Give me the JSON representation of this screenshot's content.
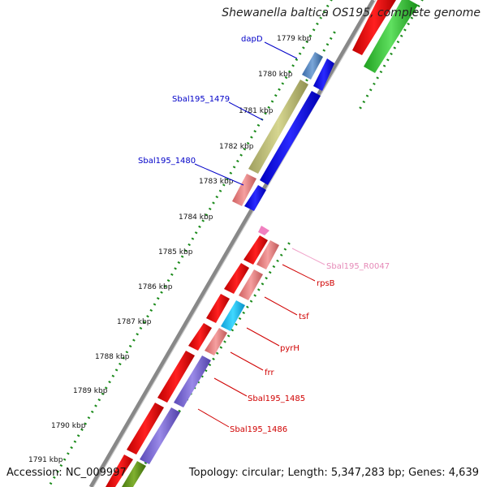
{
  "title": "Shewanella baltica OS195, complete genome",
  "footer": {
    "accession": "Accession: NC_009997",
    "topology": "Topology: circular; Length: 5,347,283 bp; Genes: 4,639"
  },
  "ruler_labels": [
    "1779 kbp",
    "1780 kbp",
    "1781 kbp",
    "1782 kbp",
    "1783 kbp",
    "1784 kbp",
    "1785 kbp",
    "1786 kbp",
    "1787 kbp",
    "1788 kbp",
    "1789 kbp",
    "1790 kbp",
    "1791 kbp"
  ],
  "gene_labels_left": [
    {
      "text": "dapD",
      "color": "#0000c8"
    },
    {
      "text": "Sbal195_1479",
      "color": "#0000c8"
    },
    {
      "text": "Sbal195_1480",
      "color": "#0000c8"
    }
  ],
  "gene_labels_right": [
    {
      "text": "Sbal195_R0047",
      "color": "#e68ab8"
    },
    {
      "text": "rpsB",
      "color": "#d00000"
    },
    {
      "text": "tsf",
      "color": "#d00000"
    },
    {
      "text": "pyrH",
      "color": "#d00000"
    },
    {
      "text": "frr",
      "color": "#d00000"
    },
    {
      "text": "Sbal195_1485",
      "color": "#d00000"
    },
    {
      "text": "Sbal195_1486",
      "color": "#d00000"
    }
  ],
  "colors": {
    "forward_cds": "#1010e0",
    "reverse_cds": "#e01010",
    "rna": "#f080c0",
    "backbone": "#808080",
    "ruler_dots": "#1a8a1a",
    "gc_green": "#2cc02c"
  }
}
